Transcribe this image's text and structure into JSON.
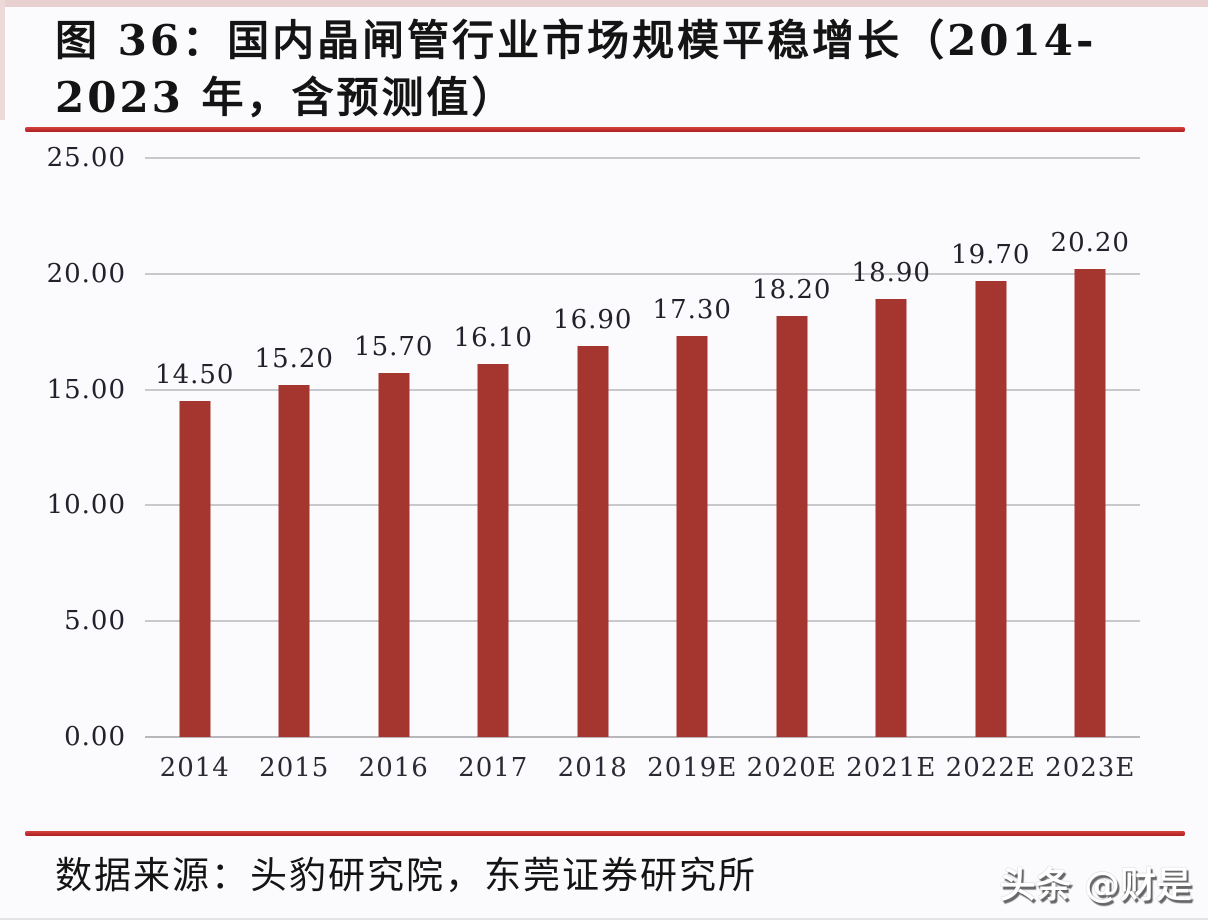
{
  "page": {
    "background": "#fbfbfd",
    "top_edge_tint": "#e9d0d0"
  },
  "title": {
    "full": "图 36：国内晶闸管行业市场规模平稳增长（2014-2023 年，含预测值）",
    "line1": "图 36：国内晶闸管行业市场规模平稳增长（2014-",
    "line2": "2023 年，含预测值）"
  },
  "rules": {
    "color": "#b71f23"
  },
  "source": {
    "label": "数据来源：头豹研究院，东莞证券研究所"
  },
  "watermark": {
    "text": "头条 @财是"
  },
  "chart_data": {
    "type": "bar",
    "title": "国内晶闸管行业市场规模平稳增长（2014-2023 年，含预测值）",
    "categories": [
      "2014",
      "2015",
      "2016",
      "2017",
      "2018",
      "2019E",
      "2020E",
      "2021E",
      "2022E",
      "2023E"
    ],
    "values": [
      14.5,
      15.2,
      15.7,
      16.1,
      16.9,
      17.3,
      18.2,
      18.9,
      19.7,
      20.2
    ],
    "value_labels": [
      "14.50",
      "15.20",
      "15.70",
      "16.10",
      "16.90",
      "17.30",
      "18.20",
      "18.90",
      "19.70",
      "20.20"
    ],
    "xlabel": "",
    "ylabel": "",
    "ylim": [
      0,
      25
    ],
    "yticks": [
      0,
      5,
      10,
      15,
      20,
      25
    ],
    "ytick_labels": [
      "0.00",
      "5.00",
      "10.00",
      "15.00",
      "20.00",
      "25.00"
    ],
    "grid": true,
    "legend_position": "none",
    "bar_color": "#a4362f",
    "gridline_color": "#c9c9cd"
  }
}
